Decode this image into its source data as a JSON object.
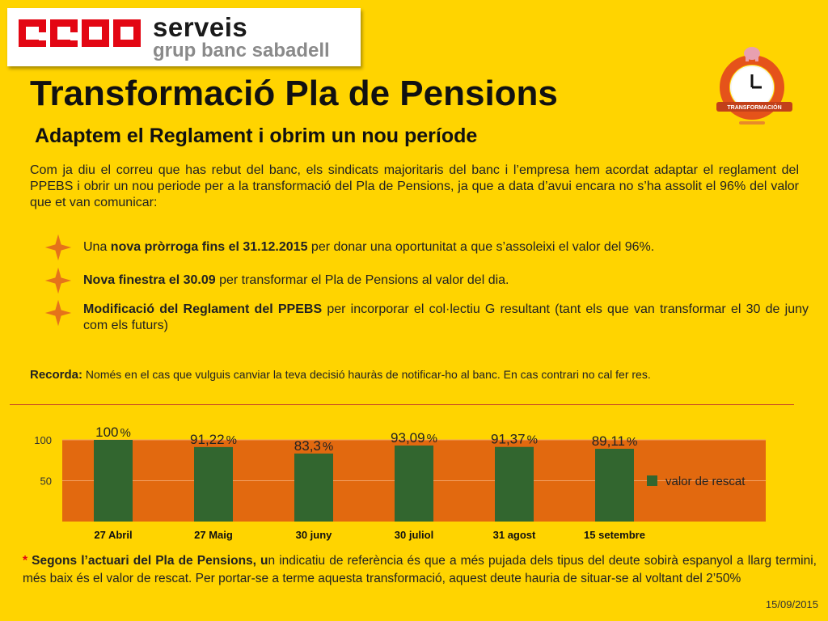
{
  "header": {
    "logo_text": "CCOO",
    "brand": "serveis",
    "brand_sub": "grup banc sabadell",
    "badge_text": "TRANSFORMACIÓN"
  },
  "title": "Transformació Pla de Pensions",
  "subtitle": "Adaptem el Reglament i obrim un nou període",
  "intro": "Com ja diu el correu que has rebut del banc, els sindicats majoritaris del banc i l’empresa hem acordat adaptar el reglament del PPEBS i obrir un nou periode per a la transformació del Pla de Pensions, ja que a data d’avui encara no s’ha assolit el 96% del valor que et van comunicar:",
  "bullets": [
    {
      "pre": "Una ",
      "bold": "nova pròrroga fins el 31.12.2015",
      "post": " per donar una oportunitat a que s’assoleixi el valor del 96%."
    },
    {
      "pre": "",
      "bold": "Nova finestra el 30.09",
      "post": " per transformar el Pla de Pensions al valor del dia."
    },
    {
      "pre": "",
      "bold": "Modificació del Reglament del PPEBS",
      "post": " per incorporar el col·lectiu G resultant (tant els que van transformar el 30 de juny com els futurs)"
    }
  ],
  "recorda": {
    "label": "Recorda:",
    "text": " Només en el cas que vulguis canviar la teva decisió hauràs de notificar-ho al banc. En cas contrari no cal fer res."
  },
  "chart_data": {
    "type": "bar",
    "categories": [
      "27 Abril",
      "27 Maig",
      "30 juny",
      "30 juliol",
      "31 agost",
      "15 setembre"
    ],
    "values": [
      100,
      91.22,
      83.3,
      93.09,
      91.37,
      89.11
    ],
    "data_labels": [
      "100",
      "91,22",
      "83,3",
      "93,09",
      "91,37",
      "89,11"
    ],
    "label_suffix": "%",
    "yticks": [
      "50",
      "100"
    ],
    "ylim": [
      0,
      100
    ],
    "legend": {
      "label": "valor de rescat",
      "placement": "right"
    },
    "colors": {
      "plot_bg": "#E2690F",
      "bar": "#32662F",
      "grid": "#F3A064"
    }
  },
  "footnote": {
    "marker": "*",
    "bold": " Segons l’actuari del Pla de Pensions, u",
    "text": "n indicatiu de referència és que a més pujada dels tipus del deute sobirà espanyol a llarg termini, més baix és el valor de rescat. Per portar-se a terme aquesta transformació, aquest deute hauria de situar-se al voltant del 2’50%"
  },
  "date": "15/09/2015"
}
